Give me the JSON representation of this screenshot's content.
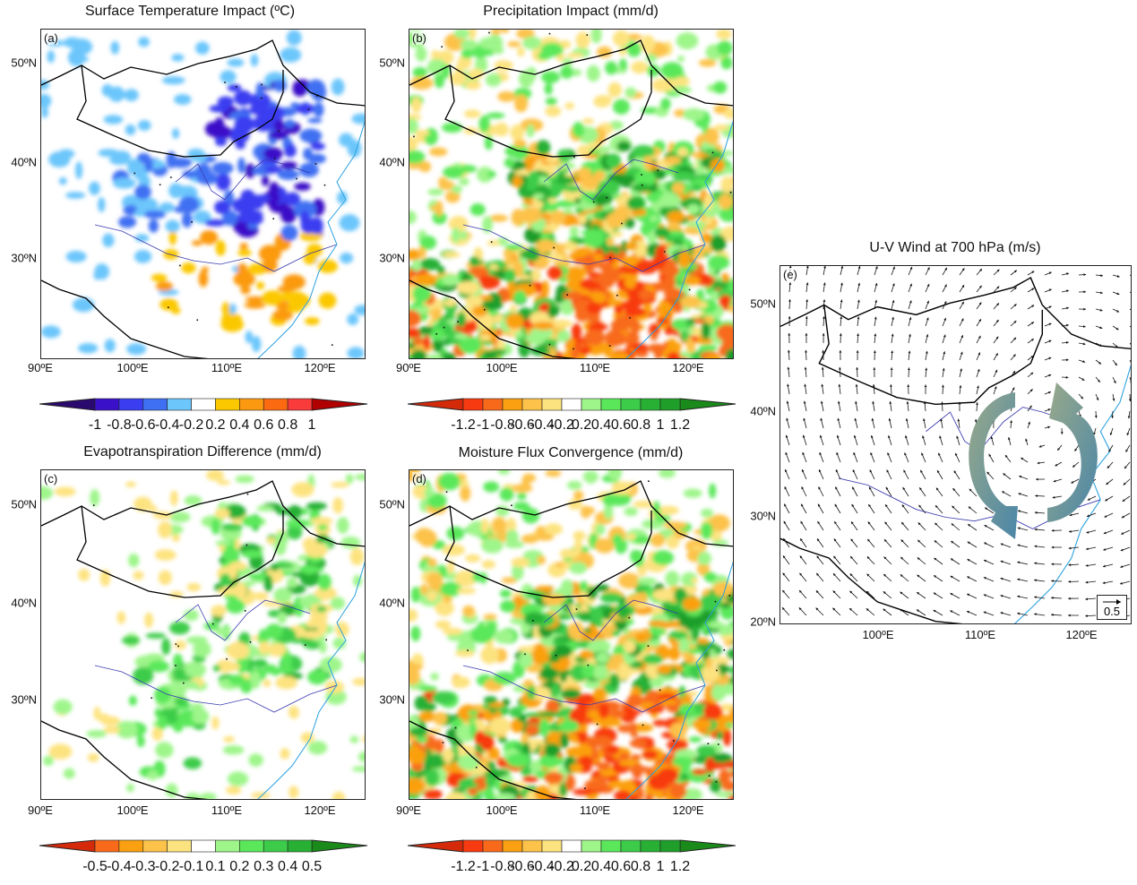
{
  "panels": [
    {
      "id": "a",
      "label": "(a)",
      "title": "Surface Temperature Impact (ºC)",
      "lat_ticks": [
        "50ºN",
        "40ºN",
        "30ºN"
      ],
      "lon_ticks": [
        "90ºE",
        "100ºE",
        "110ºE",
        "120ºE"
      ],
      "field": "temperature"
    },
    {
      "id": "b",
      "label": "(b)",
      "title": "Precipitation Impact (mm/d)",
      "lat_ticks": [
        "50ºN",
        "40ºN",
        "30ºN"
      ],
      "lon_ticks": [
        "90ºE",
        "100ºE",
        "110ºE",
        "120ºE"
      ],
      "field": "precipitation"
    },
    {
      "id": "c",
      "label": "(c)",
      "title": "Evapotranspiration Difference (mm/d)",
      "lat_ticks": [
        "50ºN",
        "40ºN",
        "30ºN"
      ],
      "lon_ticks": [
        "90ºE",
        "100ºE",
        "110ºE",
        "120ºE"
      ],
      "field": "evapotranspiration"
    },
    {
      "id": "d",
      "label": "(d)",
      "title": "Moisture Flux Convergence (mm/d)",
      "lat_ticks": [
        "50ºN",
        "40ºN",
        "30ºN"
      ],
      "lon_ticks": [
        "90ºE",
        "100ºE",
        "110ºE",
        "120ºE"
      ],
      "field": "moisture"
    },
    {
      "id": "e",
      "label": "(e)",
      "title": "U-V Wind at 700 hPa (m/s)",
      "lat_ticks": [
        "50ºN",
        "40ºN",
        "30ºN",
        "20ºN"
      ],
      "lon_ticks": [
        "100ºE",
        "110ºE",
        "120ºE"
      ],
      "field": "wind",
      "reference_vector": "0.5"
    }
  ],
  "colorbars": [
    {
      "id": "a",
      "labels": [
        "-1",
        "-0.8",
        "-0.6",
        "-0.4",
        "-0.2",
        "0.2",
        "0.4",
        "0.6",
        "0.8",
        "1"
      ],
      "low_color": "#2a0a6e",
      "high_color": "#b00000",
      "colors": [
        "#3a10c8",
        "#3a3ef0",
        "#3f6ff2",
        "#6cc6fb",
        "#ffffff",
        "#fbc800",
        "#fb9a10",
        "#fb6a10",
        "#f93b3b"
      ]
    },
    {
      "id": "b",
      "labels": [
        "-1.2",
        "-1",
        "-0.8",
        "-0.6",
        "-0.4",
        "-0.2",
        "0.2",
        "0.4",
        "0.6",
        "0.8",
        "1",
        "1.2"
      ],
      "low_color": "#d42a0a",
      "high_color": "#1a8a1a",
      "colors": [
        "#f83a10",
        "#f86a1a",
        "#fba010",
        "#fcc24a",
        "#fde37f",
        "#ffffff",
        "#9ef58a",
        "#5ae85a",
        "#3ccc4a",
        "#28b034",
        "#1f9e2a"
      ]
    },
    {
      "id": "c",
      "labels": [
        "-0.5",
        "-0.4",
        "-0.3",
        "-0.2",
        "-0.1",
        "0.1",
        "0.2",
        "0.3",
        "0.4",
        "0.5"
      ],
      "low_color": "#d42a0a",
      "high_color": "#1a8a1a",
      "colors": [
        "#f86a1a",
        "#fba010",
        "#fcc24a",
        "#fde37f",
        "#ffffff",
        "#9ef58a",
        "#5ae85a",
        "#3ccc4a",
        "#28b034"
      ]
    },
    {
      "id": "d",
      "labels": [
        "-1.2",
        "-1",
        "-0.8",
        "-0.6",
        "-0.4",
        "-0.2",
        "0.2",
        "0.4",
        "0.6",
        "0.8",
        "1",
        "1.2"
      ],
      "low_color": "#d42a0a",
      "high_color": "#1a8a1a",
      "colors": [
        "#f83a10",
        "#f86a1a",
        "#fba010",
        "#fcc24a",
        "#fde37f",
        "#ffffff",
        "#9ef58a",
        "#5ae85a",
        "#3ccc4a",
        "#28b034",
        "#1f9e2a"
      ]
    }
  ],
  "colors": {
    "border": "#000000",
    "river": "#3a3ab0",
    "coast": "#2aa0e0",
    "circulation_arrow_a": "#9aaa8a",
    "circulation_arrow_b": "#4a86a8"
  }
}
